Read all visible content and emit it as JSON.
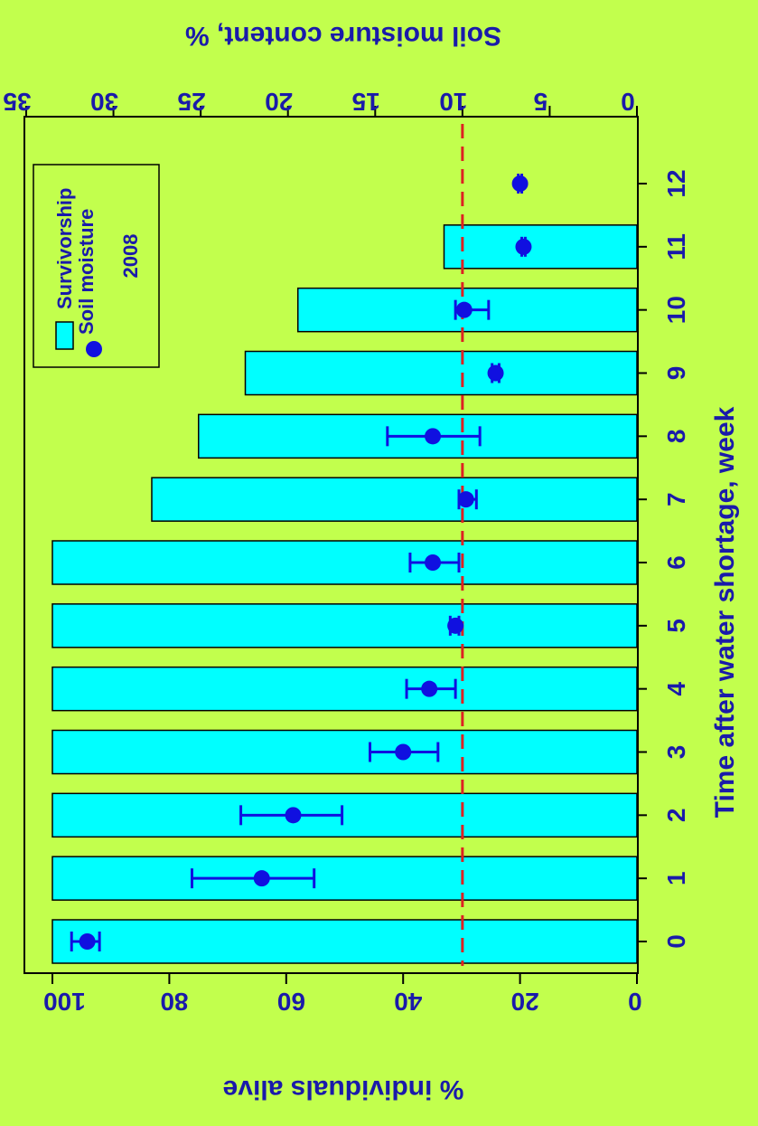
{
  "chart_data": {
    "type": "bar",
    "orientation_note": "figure rotated 90 degrees clockwise",
    "xlabel": "Time after water shortage, week",
    "ylabel_left": "% individuals alive",
    "ylabel_right": "Soil moisture content, %",
    "categories": [
      "0",
      "1",
      "2",
      "3",
      "4",
      "5",
      "6",
      "7",
      "8",
      "9",
      "10",
      "11",
      "12"
    ],
    "ylim_left": [
      0,
      100
    ],
    "left_ticks": [
      0,
      20,
      40,
      60,
      80,
      100
    ],
    "ylim_right": [
      0,
      35
    ],
    "right_ticks": [
      0,
      5,
      10,
      15,
      20,
      25,
      30,
      35
    ],
    "threshold_line": {
      "axis": "right",
      "value": 10,
      "style": "dashed",
      "color": "#dd2222"
    },
    "legend": {
      "entries": [
        "Survivorship",
        "Soil moisture"
      ],
      "title": "2008",
      "position": "top-right"
    },
    "series": [
      {
        "name": "Survivorship",
        "kind": "bar",
        "axis": "left",
        "values": [
          100,
          100,
          100,
          100,
          100,
          100,
          100,
          83,
          75,
          67,
          58,
          33,
          null
        ]
      },
      {
        "name": "Soil moisture",
        "kind": "point",
        "axis": "right",
        "values": [
          31.5,
          21.5,
          19.7,
          13.4,
          11.9,
          10.4,
          11.7,
          9.8,
          11.7,
          8.1,
          9.9,
          6.5,
          6.7
        ],
        "error_low": [
          30.8,
          18.5,
          16.9,
          11.4,
          10.4,
          10.2,
          10.2,
          9.2,
          9.0,
          7.9,
          8.5,
          6.4,
          6.6
        ],
        "error_high": [
          32.4,
          25.5,
          22.7,
          15.3,
          13.2,
          10.7,
          13.0,
          10.2,
          14.3,
          8.3,
          10.4,
          6.6,
          6.8
        ]
      }
    ],
    "colors": {
      "background": "#c2ff4d",
      "bar_fill": "#00ffff",
      "bar_stroke": "#000000",
      "point": "#1010e0",
      "text": "#1a1aaa"
    }
  }
}
